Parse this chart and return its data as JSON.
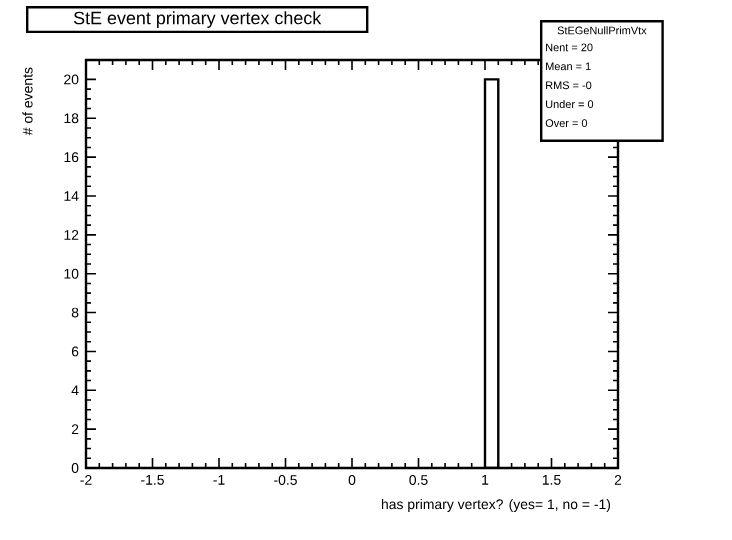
{
  "chart_data": {
    "type": "histogram",
    "title": "StE event primary vertex check",
    "xlabel": "has primary vertex? (yes= 1, no = -1)",
    "ylabel": "# of events",
    "bins": [
      1,
      1.1
    ],
    "values": [
      20
    ],
    "color": "#000000",
    "xlim": [
      -2,
      2
    ],
    "ylim": [
      0,
      21
    ],
    "xticks": [
      -2,
      -1.5,
      -1,
      -0.5,
      0,
      0.5,
      1,
      1.5,
      2
    ],
    "yticks": [
      0,
      2,
      4,
      6,
      8,
      10,
      12,
      14,
      16,
      18,
      20
    ],
    "grid": false,
    "annotations": [
      "StEGeNullPrimVtx",
      "Nent = 20",
      "Mean = 1",
      "RMS = -0",
      "Under = 0",
      "Over = 0"
    ]
  }
}
